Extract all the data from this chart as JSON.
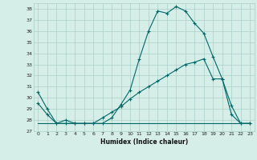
{
  "xlabel": "Humidex (Indice chaleur)",
  "background_color": "#d6eee8",
  "grid_color": "#aacfc8",
  "line_color": "#006868",
  "xlim": [
    -0.5,
    23.5
  ],
  "ylim": [
    27,
    38.5
  ],
  "yticks": [
    27,
    28,
    29,
    30,
    31,
    32,
    33,
    34,
    35,
    36,
    37,
    38
  ],
  "xticks": [
    0,
    1,
    2,
    3,
    4,
    5,
    6,
    7,
    8,
    9,
    10,
    11,
    12,
    13,
    14,
    15,
    16,
    17,
    18,
    19,
    20,
    21,
    22,
    23
  ],
  "series": [
    {
      "x": [
        0,
        1,
        2,
        3,
        4,
        5,
        6,
        7,
        8,
        9,
        10,
        11,
        12,
        13,
        14,
        15,
        16,
        17,
        18,
        19,
        20,
        21,
        22,
        23
      ],
      "y": [
        30.5,
        29.0,
        27.7,
        27.7,
        27.7,
        27.7,
        27.7,
        27.7,
        28.2,
        29.4,
        30.7,
        33.5,
        36.0,
        37.8,
        37.6,
        38.2,
        37.8,
        36.7,
        35.8,
        33.7,
        31.7,
        29.3,
        27.7,
        27.7
      ],
      "marker": true
    },
    {
      "x": [
        0,
        23
      ],
      "y": [
        27.7,
        27.7
      ],
      "marker": false
    },
    {
      "x": [
        0,
        1,
        2,
        3,
        4,
        5,
        6,
        7,
        8,
        9,
        10,
        11,
        12,
        13,
        14,
        15,
        16,
        17,
        18,
        19,
        20,
        21,
        22,
        23
      ],
      "y": [
        29.5,
        28.5,
        27.7,
        28.0,
        27.7,
        27.7,
        27.7,
        28.2,
        28.7,
        29.2,
        29.9,
        30.5,
        31.0,
        31.5,
        32.0,
        32.5,
        33.0,
        33.2,
        33.5,
        31.7,
        31.7,
        28.5,
        27.7,
        27.7
      ],
      "marker": true
    }
  ]
}
